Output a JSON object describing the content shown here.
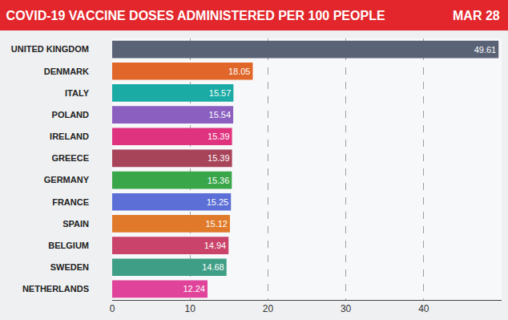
{
  "chart_data": {
    "type": "bar",
    "orientation": "horizontal",
    "title": "COVID-19 VACCINE DOSES ADMINISTERED PER 100 PEOPLE",
    "subtitle": "MAR 28",
    "categories": [
      "UNITED KINGDOM",
      "DENMARK",
      "ITALY",
      "POLAND",
      "IRELAND",
      "GREECE",
      "GERMANY",
      "FRANCE",
      "SPAIN",
      "BELGIUM",
      "SWEDEN",
      "NETHERLANDS"
    ],
    "values": [
      49.61,
      18.05,
      15.57,
      15.54,
      15.39,
      15.39,
      15.36,
      15.25,
      15.12,
      14.94,
      14.68,
      12.24
    ],
    "colors": [
      "#5a6275",
      "#e0662a",
      "#1aaba5",
      "#8a5fc0",
      "#e0337f",
      "#a8445a",
      "#3aa64a",
      "#5b6fd6",
      "#e07a2a",
      "#c9436a",
      "#3f9e86",
      "#e0449a"
    ],
    "xlim": [
      0,
      50
    ],
    "xticks": [
      0,
      10,
      20,
      30,
      40
    ],
    "grid": true,
    "data_labels": true
  }
}
